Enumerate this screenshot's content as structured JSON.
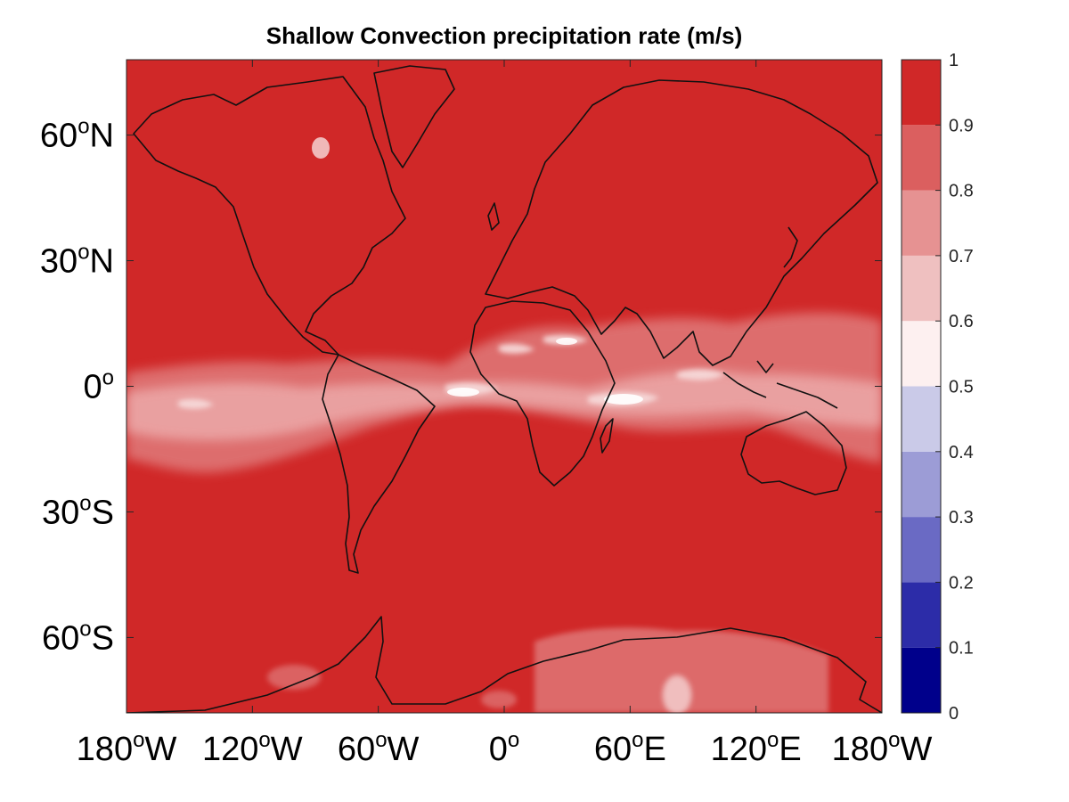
{
  "chart_data": {
    "type": "heatmap",
    "title": "Shallow Convection precipitation rate (m/s)",
    "x_ticks": [
      {
        "deg": "180",
        "hemi": "W",
        "lon": -180
      },
      {
        "deg": "120",
        "hemi": "W",
        "lon": -120
      },
      {
        "deg": "60",
        "hemi": "W",
        "lon": -60
      },
      {
        "deg": "0",
        "hemi": "",
        "lon": 0
      },
      {
        "deg": "60",
        "hemi": "E",
        "lon": 60
      },
      {
        "deg": "120",
        "hemi": "E",
        "lon": 120
      },
      {
        "deg": "180",
        "hemi": "W",
        "lon": 180
      }
    ],
    "y_ticks": [
      {
        "deg": "60",
        "hemi": "N",
        "lat": 60
      },
      {
        "deg": "30",
        "hemi": "N",
        "lat": 30
      },
      {
        "deg": "0",
        "hemi": "",
        "lat": 0
      },
      {
        "deg": "30",
        "hemi": "S",
        "lat": -30
      },
      {
        "deg": "60",
        "hemi": "S",
        "lat": -60
      }
    ],
    "degree_symbol": "o",
    "xlim": [
      -180,
      180
    ],
    "ylim": [
      -78,
      78
    ],
    "colorbar": {
      "levels": [
        0,
        0.1,
        0.2,
        0.3,
        0.4,
        0.5,
        0.6,
        0.7,
        0.8,
        0.9,
        1
      ],
      "tick_labels": [
        "0",
        "0.1",
        "0.2",
        "0.3",
        "0.4",
        "0.5",
        "0.6",
        "0.7",
        "0.8",
        "0.9",
        "1"
      ],
      "colors": [
        "#00008b",
        "#2c2ca8",
        "#6a6ac4",
        "#9c9cd6",
        "#cacae8",
        "#fdf0f0",
        "#efc0c0",
        "#e69292",
        "#db5f5f",
        "#d02828"
      ]
    },
    "field_summary": {
      "background_value": 0.95,
      "tropical_band_values": [
        0.6,
        0.9
      ]
    }
  },
  "colors": {
    "background_fill": "#d02828",
    "axes": "#262626"
  }
}
